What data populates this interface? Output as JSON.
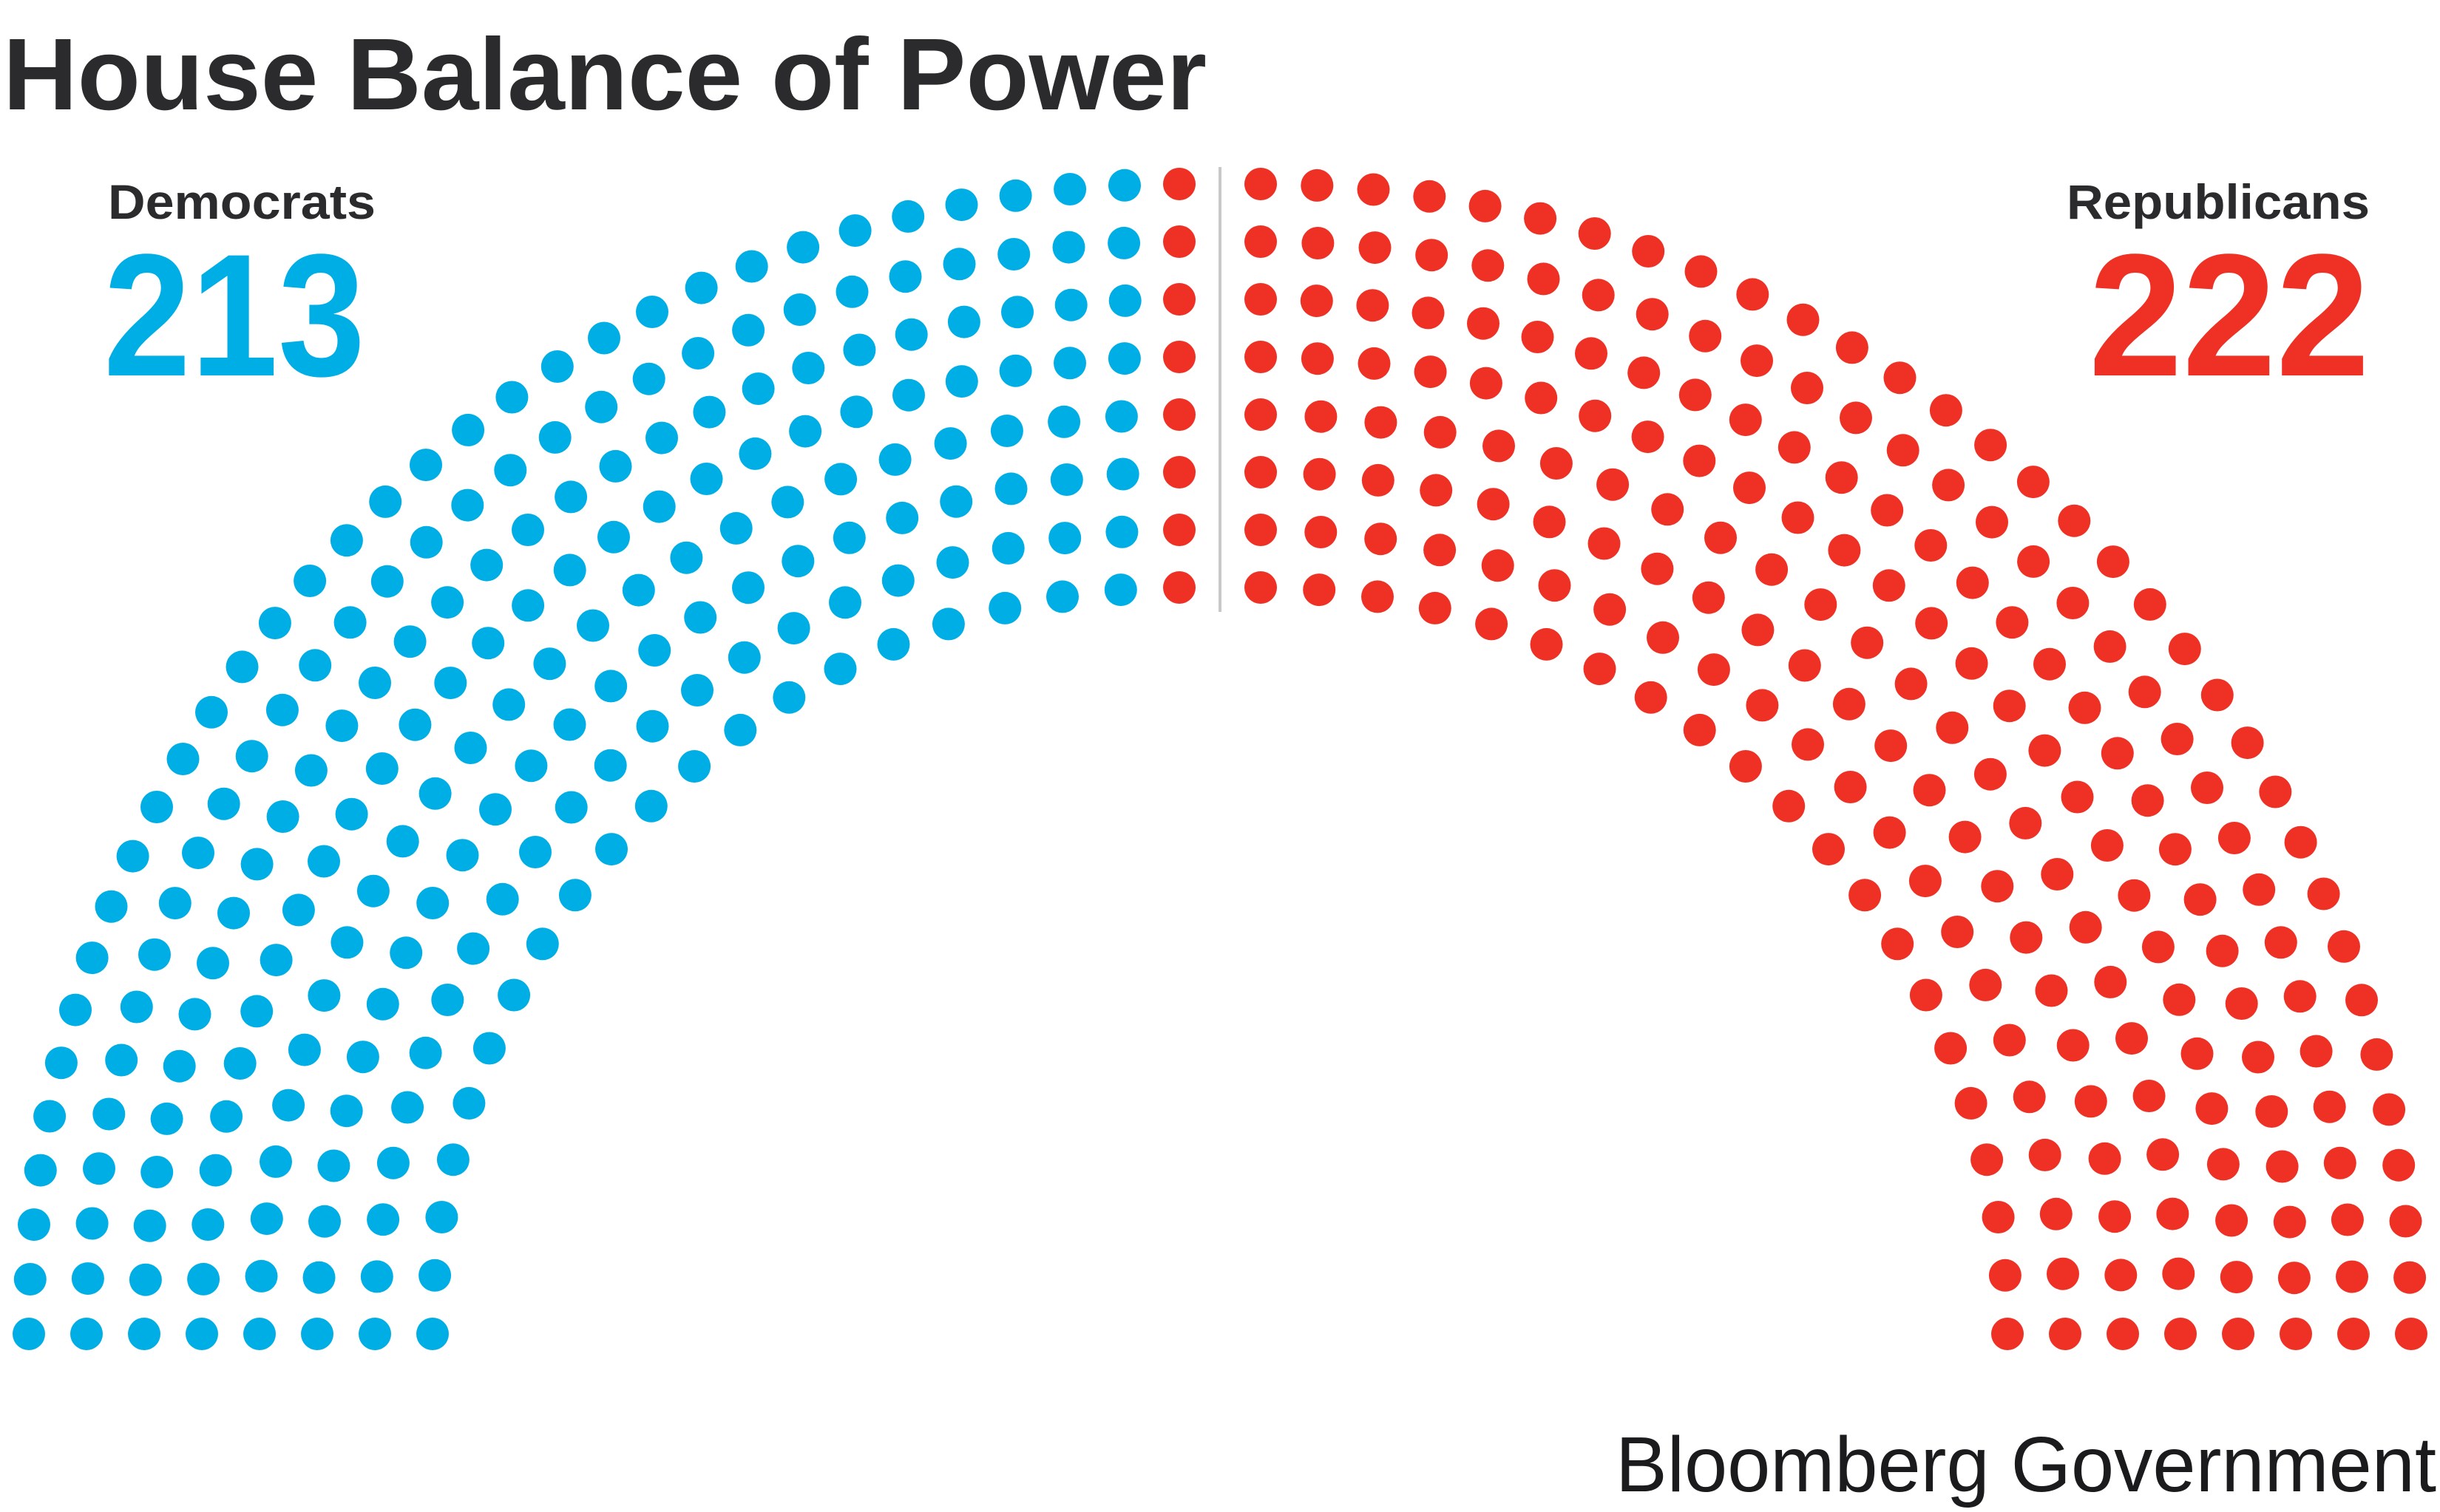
{
  "title": "House Balance of Power",
  "source": "Bloomberg Government",
  "colors": {
    "democrat": "#00aee6",
    "republican": "#ee3124",
    "divider": "#c8c8c8",
    "text": "#2b2b2e"
  },
  "chart_data": {
    "type": "parliament",
    "title": "House Balance of Power",
    "total_seats": 435,
    "series": [
      {
        "name": "Democrats",
        "count": 213,
        "count_label": "213",
        "color": "#00aee6",
        "side": "left"
      },
      {
        "name": "Republicans",
        "count": 222,
        "count_label": "222",
        "color": "#ee3124",
        "side": "right"
      }
    ]
  }
}
